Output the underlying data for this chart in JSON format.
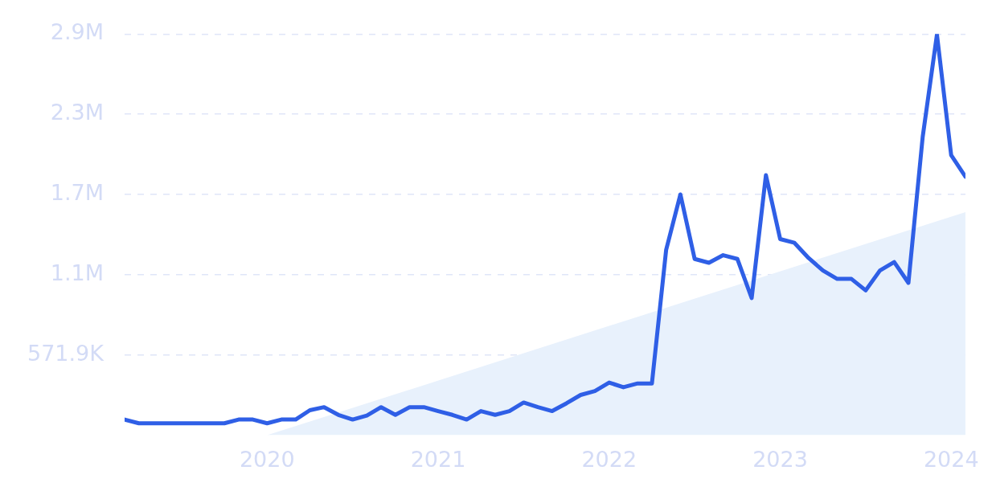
{
  "chart_data": {
    "type": "line",
    "x": [
      "2019-03",
      "2019-04",
      "2019-05",
      "2019-06",
      "2019-07",
      "2019-08",
      "2019-09",
      "2019-10",
      "2019-11",
      "2019-12",
      "2020-01",
      "2020-02",
      "2020-03",
      "2020-04",
      "2020-05",
      "2020-06",
      "2020-07",
      "2020-08",
      "2020-09",
      "2020-10",
      "2020-11",
      "2020-12",
      "2021-01",
      "2021-02",
      "2021-03",
      "2021-04",
      "2021-05",
      "2021-06",
      "2021-07",
      "2021-08",
      "2021-09",
      "2021-10",
      "2021-11",
      "2021-12",
      "2022-01",
      "2022-02",
      "2022-03",
      "2022-04",
      "2022-05",
      "2022-06",
      "2022-07",
      "2022-08",
      "2022-09",
      "2022-10",
      "2022-11",
      "2022-12",
      "2023-01",
      "2023-02",
      "2023-03",
      "2023-04",
      "2023-05",
      "2023-06",
      "2023-07",
      "2023-08",
      "2023-09",
      "2023-10",
      "2023-11",
      "2023-12",
      "2024-01",
      "2024-02"
    ],
    "series": [
      {
        "type": "area",
        "color": "#e8f1fc",
        "x": [
          "2020-01",
          "2024-02"
        ],
        "values": [
          0,
          1590000
        ]
      },
      {
        "color": "#2f5fe6",
        "values": [
          112000,
          85000,
          85000,
          85000,
          85000,
          85000,
          85000,
          85000,
          112000,
          112000,
          85000,
          112000,
          112000,
          178000,
          200000,
          145000,
          112000,
          140000,
          200000,
          145000,
          200000,
          200000,
          172000,
          145000,
          112000,
          172000,
          145000,
          172000,
          233000,
          200000,
          172000,
          227000,
          287000,
          315000,
          375000,
          342000,
          369000,
          369000,
          1322000,
          1716000,
          1256000,
          1229000,
          1283000,
          1256000,
          977000,
          1853000,
          1398000,
          1371000,
          1262000,
          1174000,
          1114000,
          1114000,
          1032000,
          1174000,
          1234000,
          1086000,
          2126000,
          2855000,
          1995000,
          1842000
        ]
      }
    ],
    "xlim": [
      "2019-03",
      "2024-02"
    ],
    "xticks": [
      {
        "value": "2020",
        "label": "2020"
      },
      {
        "value": "2021",
        "label": "2021"
      },
      {
        "value": "2022",
        "label": "2022"
      },
      {
        "value": "2023",
        "label": "2023"
      },
      {
        "value": "2024",
        "label": "2024"
      }
    ],
    "ylim": [
      0,
      2860000
    ],
    "yticks": [
      {
        "value": 571900,
        "label": "571.9K"
      },
      {
        "value": 1143800,
        "label": "1.1M"
      },
      {
        "value": 1715700,
        "label": "1.7M"
      },
      {
        "value": 2287600,
        "label": "2.3M"
      },
      {
        "value": 2859500,
        "label": "2.9M"
      }
    ],
    "grid": "y",
    "marker": "none",
    "line_style": "solid"
  }
}
